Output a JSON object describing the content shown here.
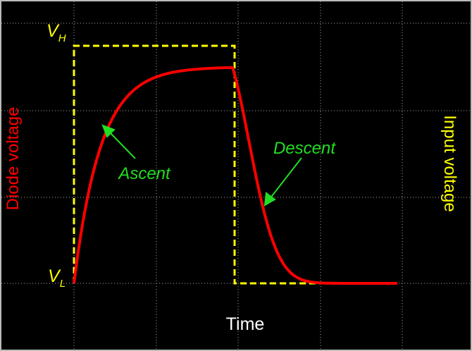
{
  "labels": {
    "v_high": {
      "symbol": "V",
      "subscript": "H"
    },
    "v_low": {
      "symbol": "V",
      "subscript": "L"
    },
    "ascent": "Ascent",
    "descent": "Descent",
    "left_axis": "Diode voltage",
    "right_axis": "Input voltage",
    "bottom_axis": "Time"
  }
}
